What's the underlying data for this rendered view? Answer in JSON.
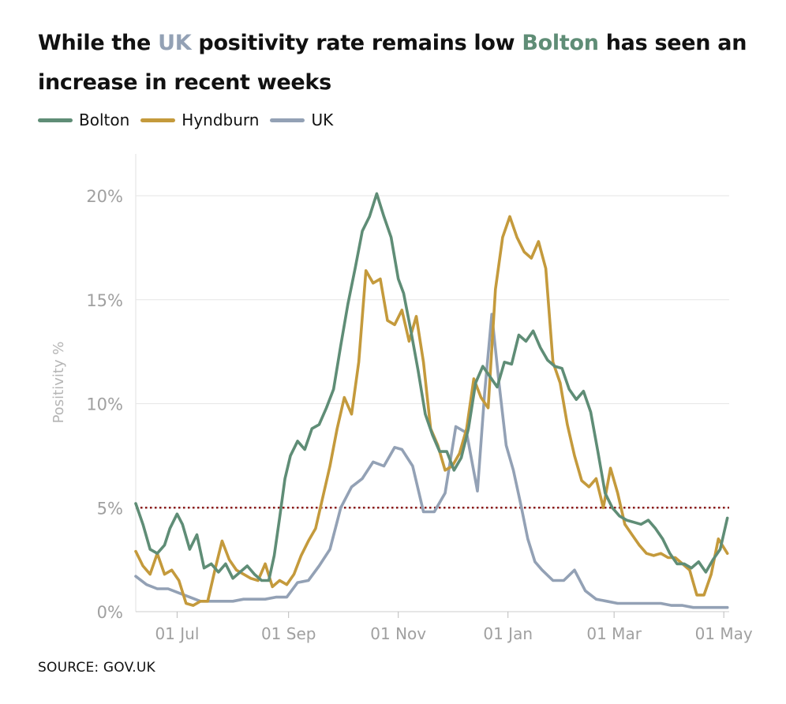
{
  "title": {
    "part1": "While the ",
    "uk": "UK",
    "part2": " positivity rate remains low ",
    "bolton": "Bolton",
    "part3": " has seen an increase in recent weeks"
  },
  "source": "SOURCE: GOV.UK",
  "colors": {
    "Bolton": "#5f8d76",
    "Hyndburn": "#c49a3c",
    "UK": "#93a1b5",
    "threshold": "#8b1a1a"
  },
  "chart_data": {
    "type": "line",
    "ylabel": "Positivity %",
    "xlabel": "",
    "ylim": [
      0,
      20
    ],
    "yticks": [
      0,
      5,
      10,
      15,
      20
    ],
    "ytick_labels": [
      "0%",
      "5%",
      "10%",
      "15%",
      "20%"
    ],
    "xlim": [
      "2020-06-08",
      "2021-05-04"
    ],
    "xticks": [
      "2020-07-01",
      "2020-09-01",
      "2020-11-01",
      "2021-01-01",
      "2021-03-01",
      "2021-05-01"
    ],
    "xtick_labels": [
      "01 Jul",
      "01 Sep",
      "01 Nov",
      "01 Jan",
      "01 Mar",
      "01 May"
    ],
    "threshold": 5,
    "grid": "horizontal",
    "legend_position": "top-left",
    "series": [
      {
        "name": "Bolton",
        "x": [
          "2020-06-08",
          "2020-06-12",
          "2020-06-16",
          "2020-06-20",
          "2020-06-24",
          "2020-06-27",
          "2020-07-01",
          "2020-07-04",
          "2020-07-08",
          "2020-07-12",
          "2020-07-16",
          "2020-07-20",
          "2020-07-24",
          "2020-07-28",
          "2020-08-01",
          "2020-08-05",
          "2020-08-09",
          "2020-08-13",
          "2020-08-17",
          "2020-08-21",
          "2020-08-24",
          "2020-08-27",
          "2020-08-30",
          "2020-09-02",
          "2020-09-06",
          "2020-09-10",
          "2020-09-14",
          "2020-09-18",
          "2020-09-22",
          "2020-09-26",
          "2020-09-30",
          "2020-10-04",
          "2020-10-08",
          "2020-10-12",
          "2020-10-16",
          "2020-10-20",
          "2020-10-24",
          "2020-10-28",
          "2020-11-01",
          "2020-11-04",
          "2020-11-08",
          "2020-11-12",
          "2020-11-16",
          "2020-11-20",
          "2020-11-24",
          "2020-11-28",
          "2020-12-02",
          "2020-12-06",
          "2020-12-10",
          "2020-12-14",
          "2020-12-18",
          "2020-12-22",
          "2020-12-26",
          "2020-12-30",
          "2021-01-03",
          "2021-01-07",
          "2021-01-11",
          "2021-01-15",
          "2021-01-19",
          "2021-01-23",
          "2021-01-27",
          "2021-01-31",
          "2021-02-04",
          "2021-02-08",
          "2021-02-12",
          "2021-02-16",
          "2021-02-20",
          "2021-02-24",
          "2021-02-28",
          "2021-03-04",
          "2021-03-08",
          "2021-03-12",
          "2021-03-16",
          "2021-03-20",
          "2021-03-24",
          "2021-03-28",
          "2021-04-01",
          "2021-04-05",
          "2021-04-09",
          "2021-04-13",
          "2021-04-17",
          "2021-04-21",
          "2021-04-25",
          "2021-04-29",
          "2021-05-03"
        ],
        "values": [
          5.2,
          4.2,
          3.0,
          2.8,
          3.2,
          4.0,
          4.7,
          4.2,
          3.0,
          3.7,
          2.1,
          2.3,
          1.9,
          2.3,
          1.6,
          1.9,
          2.2,
          1.8,
          1.5,
          1.5,
          2.7,
          4.5,
          6.4,
          7.5,
          8.2,
          7.8,
          8.8,
          9.0,
          9.8,
          10.7,
          12.8,
          14.8,
          16.5,
          18.3,
          19.0,
          20.1,
          19.0,
          18.0,
          16.0,
          15.3,
          13.5,
          11.6,
          9.5,
          8.5,
          7.7,
          7.7,
          6.8,
          7.4,
          8.8,
          11.0,
          11.8,
          11.3,
          10.8,
          12.0,
          11.9,
          13.3,
          13.0,
          13.5,
          12.7,
          12.1,
          11.8,
          11.7,
          10.7,
          10.2,
          10.6,
          9.6,
          7.7,
          5.7,
          5.0,
          4.6,
          4.4,
          4.3,
          4.2,
          4.4,
          4.0,
          3.5,
          2.8,
          2.3,
          2.3,
          2.1,
          2.4,
          1.9,
          2.5,
          3.0,
          4.5
        ]
      },
      {
        "name": "Hyndburn",
        "x": [
          "2020-06-08",
          "2020-06-12",
          "2020-06-16",
          "2020-06-20",
          "2020-06-24",
          "2020-06-28",
          "2020-07-02",
          "2020-07-06",
          "2020-07-10",
          "2020-07-14",
          "2020-07-18",
          "2020-07-22",
          "2020-07-26",
          "2020-07-30",
          "2020-08-03",
          "2020-08-07",
          "2020-08-11",
          "2020-08-15",
          "2020-08-19",
          "2020-08-23",
          "2020-08-27",
          "2020-08-31",
          "2020-09-04",
          "2020-09-08",
          "2020-09-12",
          "2020-09-16",
          "2020-09-20",
          "2020-09-24",
          "2020-09-28",
          "2020-10-02",
          "2020-10-06",
          "2020-10-10",
          "2020-10-14",
          "2020-10-18",
          "2020-10-22",
          "2020-10-26",
          "2020-10-30",
          "2020-11-03",
          "2020-11-07",
          "2020-11-11",
          "2020-11-15",
          "2020-11-19",
          "2020-11-23",
          "2020-11-27",
          "2020-12-01",
          "2020-12-05",
          "2020-12-09",
          "2020-12-13",
          "2020-12-17",
          "2020-12-21",
          "2020-12-25",
          "2020-12-29",
          "2021-01-02",
          "2021-01-06",
          "2021-01-10",
          "2021-01-14",
          "2021-01-18",
          "2021-01-22",
          "2021-01-26",
          "2021-01-30",
          "2021-02-03",
          "2021-02-07",
          "2021-02-11",
          "2021-02-15",
          "2021-02-19",
          "2021-02-23",
          "2021-02-27",
          "2021-03-03",
          "2021-03-07",
          "2021-03-11",
          "2021-03-15",
          "2021-03-19",
          "2021-03-23",
          "2021-03-27",
          "2021-03-31",
          "2021-04-04",
          "2021-04-08",
          "2021-04-12",
          "2021-04-16",
          "2021-04-20",
          "2021-04-24",
          "2021-04-28",
          "2021-05-03"
        ],
        "values": [
          2.9,
          2.2,
          1.8,
          2.8,
          1.8,
          2.0,
          1.5,
          0.4,
          0.3,
          0.5,
          0.5,
          2.0,
          3.4,
          2.5,
          2.0,
          1.8,
          1.6,
          1.5,
          2.3,
          1.2,
          1.5,
          1.3,
          1.8,
          2.7,
          3.4,
          4.0,
          5.5,
          7.0,
          8.8,
          10.3,
          9.5,
          12.0,
          16.4,
          15.8,
          16.0,
          14.0,
          13.8,
          14.5,
          13.0,
          14.2,
          12.0,
          8.8,
          8.0,
          6.8,
          7.0,
          7.6,
          8.8,
          11.2,
          10.3,
          9.8,
          15.5,
          18.0,
          19.0,
          18.0,
          17.3,
          17.0,
          17.8,
          16.5,
          12.0,
          11.0,
          9.0,
          7.5,
          6.3,
          6.0,
          6.4,
          5.0,
          6.9,
          5.7,
          4.2,
          3.7,
          3.2,
          2.8,
          2.7,
          2.8,
          2.6,
          2.6,
          2.3,
          2.0,
          0.8,
          0.8,
          1.8,
          3.5,
          2.8
        ]
      },
      {
        "name": "UK",
        "x": [
          "2020-06-08",
          "2020-06-14",
          "2020-06-20",
          "2020-06-26",
          "2020-07-02",
          "2020-07-08",
          "2020-07-14",
          "2020-07-20",
          "2020-07-26",
          "2020-08-01",
          "2020-08-07",
          "2020-08-13",
          "2020-08-19",
          "2020-08-25",
          "2020-08-31",
          "2020-09-06",
          "2020-09-12",
          "2020-09-18",
          "2020-09-24",
          "2020-09-30",
          "2020-10-06",
          "2020-10-12",
          "2020-10-18",
          "2020-10-24",
          "2020-10-30",
          "2020-11-03",
          "2020-11-09",
          "2020-11-15",
          "2020-11-21",
          "2020-11-27",
          "2020-12-03",
          "2020-12-09",
          "2020-12-15",
          "2020-12-19",
          "2020-12-23",
          "2020-12-27",
          "2020-12-31",
          "2021-01-04",
          "2021-01-08",
          "2021-01-12",
          "2021-01-16",
          "2021-01-20",
          "2021-01-26",
          "2021-02-01",
          "2021-02-07",
          "2021-02-13",
          "2021-02-19",
          "2021-02-25",
          "2021-03-03",
          "2021-03-09",
          "2021-03-15",
          "2021-03-21",
          "2021-03-27",
          "2021-04-02",
          "2021-04-08",
          "2021-04-14",
          "2021-04-20",
          "2021-04-26",
          "2021-05-03"
        ],
        "values": [
          1.7,
          1.3,
          1.1,
          1.1,
          0.9,
          0.7,
          0.5,
          0.5,
          0.5,
          0.5,
          0.6,
          0.6,
          0.6,
          0.7,
          0.7,
          1.4,
          1.5,
          2.2,
          3.0,
          5.0,
          6.0,
          6.4,
          7.2,
          7.0,
          7.9,
          7.8,
          7.0,
          4.8,
          4.8,
          5.7,
          8.9,
          8.6,
          5.8,
          10.5,
          14.3,
          11.0,
          8.0,
          6.8,
          5.2,
          3.5,
          2.4,
          2.0,
          1.5,
          1.5,
          2.0,
          1.0,
          0.6,
          0.5,
          0.4,
          0.4,
          0.4,
          0.4,
          0.4,
          0.3,
          0.3,
          0.2,
          0.2,
          0.2,
          0.2
        ]
      }
    ]
  }
}
